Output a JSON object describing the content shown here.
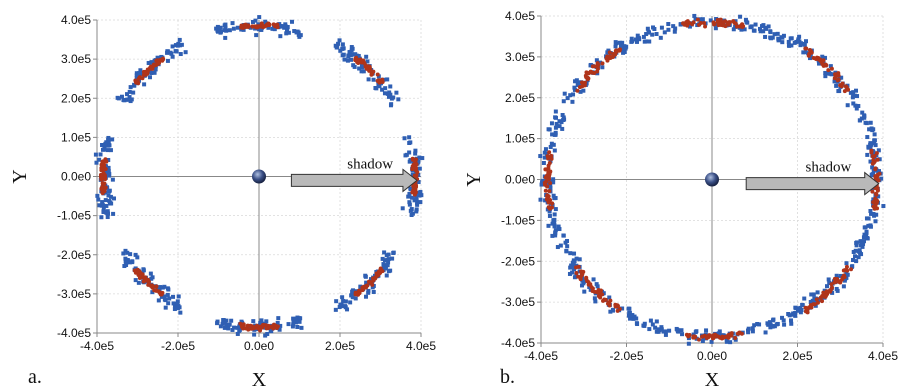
{
  "chart_data": [
    {
      "type": "scatter",
      "panel_label": "a.",
      "xlabel": "X",
      "ylabel": "Y",
      "xlim": [
        -400000,
        400000
      ],
      "ylim": [
        -400000,
        400000
      ],
      "x_ticks": [
        "-4.0e5",
        "-2.0e5",
        "0.0e0",
        "2.0e5",
        "4.0e5"
      ],
      "y_ticks": [
        "4.0e5",
        "3.0e5",
        "2.0e5",
        "1.0e5",
        "0.0e0",
        "-1.0e5",
        "-2.0e5",
        "-3.0e5",
        "-4.0e5"
      ],
      "grid": true,
      "annotation": "shadow",
      "orbit_radius": 385000,
      "series": [
        {
          "color": "#2f5fb3",
          "shape": "square",
          "arc_centers_deg": [
            0,
            45,
            90,
            135,
            180,
            225,
            270,
            315
          ],
          "arc_halfwidth_deg": 16,
          "radial_spread": 28000
        },
        {
          "color": "#b0341a",
          "shape": "circle",
          "arc_centers_deg": [
            0,
            45,
            90,
            135,
            180,
            225,
            270,
            315
          ],
          "arc_halfwidth_deg": 7,
          "radial_spread": 10000
        }
      ]
    },
    {
      "type": "scatter",
      "panel_label": "b.",
      "xlabel": "X",
      "ylabel": "Y",
      "xlim": [
        -400000,
        400000
      ],
      "ylim": [
        -400000,
        400000
      ],
      "x_ticks": [
        "-4.0e5",
        "-2.0e5",
        "0.0e0",
        "2.0e5",
        "4.0e5"
      ],
      "y_ticks": [
        "4.0e5",
        "3.0e5",
        "2.0e5",
        "1.0e5",
        "0.0e0",
        "-1.0e5",
        "-2.0e5",
        "-3.0e5",
        "-4.0e5"
      ],
      "grid": true,
      "annotation": "shadow",
      "orbit_radius": 385000,
      "series": [
        {
          "color": "#2f5fb3",
          "shape": "square",
          "arc_centers_deg": [],
          "full_ring": true,
          "radial_spread": 26000
        },
        {
          "color": "#b0341a",
          "shape": "circle",
          "arc_centers_deg": [
            0,
            45,
            90,
            135,
            180,
            225,
            270,
            315
          ],
          "arc_halfwidth_deg": 11,
          "radial_spread": 12000
        }
      ]
    }
  ]
}
